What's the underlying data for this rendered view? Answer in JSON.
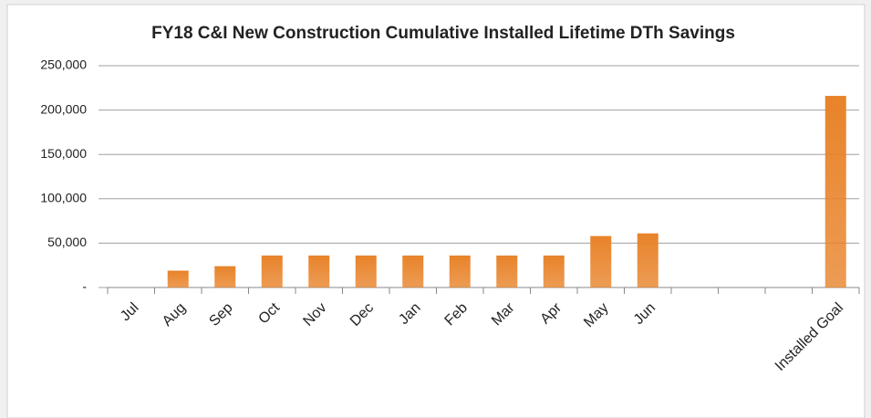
{
  "chart_data": {
    "type": "bar",
    "title": "FY18 C&I New Construction Cumulative Installed Lifetime DTh Savings",
    "categories": [
      "Jul",
      "Aug",
      "Sep",
      "Oct",
      "Nov",
      "Dec",
      "Jan",
      "Feb",
      "Mar",
      "Apr",
      "May",
      "Jun",
      null,
      null,
      null,
      "Installed Goal"
    ],
    "values": [
      0,
      19000,
      24000,
      36000,
      36000,
      36000,
      36000,
      36000,
      36000,
      36000,
      58000,
      61000,
      null,
      null,
      null,
      216000
    ],
    "color": "#e8832a",
    "ylim": [
      0,
      250000
    ],
    "yticks": [
      {
        "value": 0,
        "label": "-"
      },
      {
        "value": 50000,
        "label": "50,000"
      },
      {
        "value": 100000,
        "label": "100,000"
      },
      {
        "value": 150000,
        "label": "150,000"
      },
      {
        "value": 200000,
        "label": "200,000"
      },
      {
        "value": 250000,
        "label": "250,000"
      }
    ],
    "grid": true
  }
}
